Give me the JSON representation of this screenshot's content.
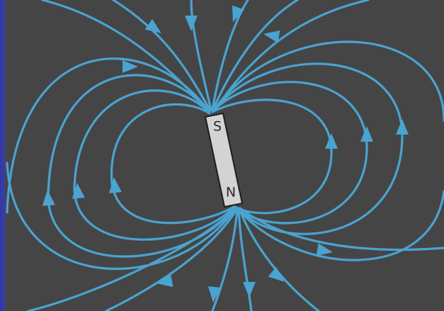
{
  "colors": {
    "background": "#454545",
    "edge": "#3439a6",
    "field_line": "#4aa3d0",
    "magnet_fill": "#d3d3d3",
    "magnet_stroke": "#1e1e1e"
  },
  "magnet": {
    "south_label": "S",
    "north_label": "N"
  },
  "icons": [
    "field-arrow-icon"
  ]
}
